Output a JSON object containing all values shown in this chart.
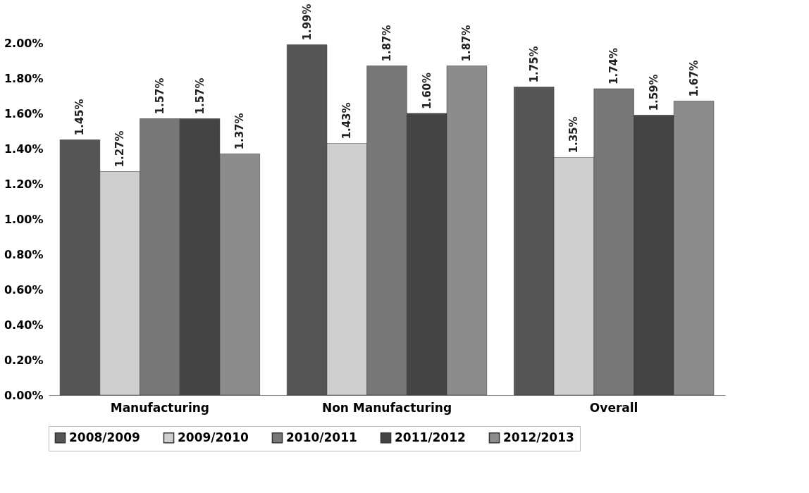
{
  "chart_data": {
    "type": "bar",
    "categories": [
      "Manufacturing",
      "Non Manufacturing",
      "Overall"
    ],
    "series": [
      {
        "name": "2008/2009",
        "color": "#555555",
        "values": [
          1.45,
          1.99,
          1.75
        ],
        "value_labels": [
          "1.45%",
          "1.99%",
          "1.75%"
        ]
      },
      {
        "name": "2009/2010",
        "color": "#cfcfcf",
        "values": [
          1.27,
          1.43,
          1.35
        ],
        "value_labels": [
          "1.27%",
          "1.43%",
          "1.35%"
        ]
      },
      {
        "name": "2010/2011",
        "color": "#777777",
        "values": [
          1.57,
          1.87,
          1.74
        ],
        "value_labels": [
          "1.57%",
          "1.87%",
          "1.74%"
        ]
      },
      {
        "name": "2011/2012",
        "color": "#444444",
        "values": [
          1.57,
          1.6,
          1.59
        ],
        "value_labels": [
          "1.57%",
          "1.60%",
          "1.59%"
        ]
      },
      {
        "name": "2012/2013",
        "color": "#8c8c8c",
        "values": [
          1.37,
          1.87,
          1.67
        ],
        "value_labels": [
          "1.37%",
          "1.87%",
          "1.67%"
        ]
      }
    ],
    "ylim": [
      0,
      2
    ],
    "yticks": [
      {
        "value": 0,
        "label": "0.00%"
      },
      {
        "value": 0.2,
        "label": "0.20%"
      },
      {
        "value": 0.4,
        "label": "0.40%"
      },
      {
        "value": 0.6,
        "label": "0.60%"
      },
      {
        "value": 0.8,
        "label": "0.80%"
      },
      {
        "value": 1.0,
        "label": "1.00%"
      },
      {
        "value": 1.2,
        "label": "1.20%"
      },
      {
        "value": 1.4,
        "label": "1.40%"
      },
      {
        "value": 1.6,
        "label": "1.60%"
      },
      {
        "value": 1.8,
        "label": "1.80%"
      },
      {
        "value": 2.0,
        "label": "2.00%"
      }
    ],
    "grid": false,
    "legend": "bottom"
  }
}
